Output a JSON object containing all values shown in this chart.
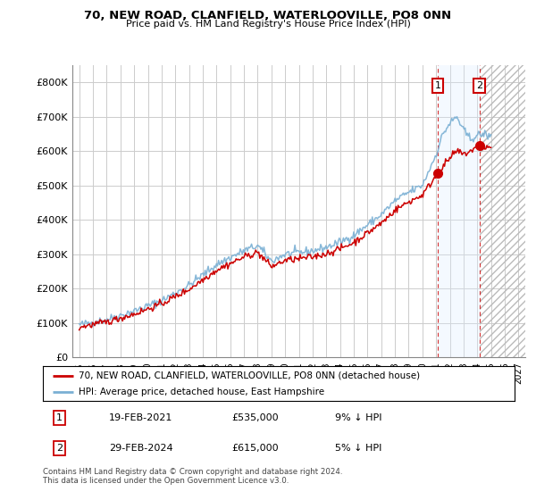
{
  "title": "70, NEW ROAD, CLANFIELD, WATERLOOVILLE, PO8 0NN",
  "subtitle": "Price paid vs. HM Land Registry's House Price Index (HPI)",
  "ylim": [
    0,
    850000
  ],
  "yticks": [
    0,
    100000,
    200000,
    300000,
    400000,
    500000,
    600000,
    700000,
    800000
  ],
  "ytick_labels": [
    "£0",
    "£100K",
    "£200K",
    "£300K",
    "£400K",
    "£500K",
    "£600K",
    "£700K",
    "£800K"
  ],
  "legend_line1": "70, NEW ROAD, CLANFIELD, WATERLOOVILLE, PO8 0NN (detached house)",
  "legend_line2": "HPI: Average price, detached house, East Hampshire",
  "annotation1_date": "19-FEB-2021",
  "annotation1_price": "£535,000",
  "annotation1_hpi": "9% ↓ HPI",
  "annotation2_date": "29-FEB-2024",
  "annotation2_price": "£615,000",
  "annotation2_hpi": "5% ↓ HPI",
  "footer": "Contains HM Land Registry data © Crown copyright and database right 2024.\nThis data is licensed under the Open Government Licence v3.0.",
  "hpi_color": "#7ab0d4",
  "price_color": "#cc0000",
  "sale1_x": 2021.12,
  "sale1_y": 535000,
  "sale2_x": 2024.16,
  "sale2_y": 615000,
  "xlim_left": 1994.5,
  "xlim_right": 2027.5,
  "shade_color": "#ddeeff",
  "hatch_color": "#bbbbbb",
  "background_color": "#ffffff",
  "grid_color": "#cccccc"
}
